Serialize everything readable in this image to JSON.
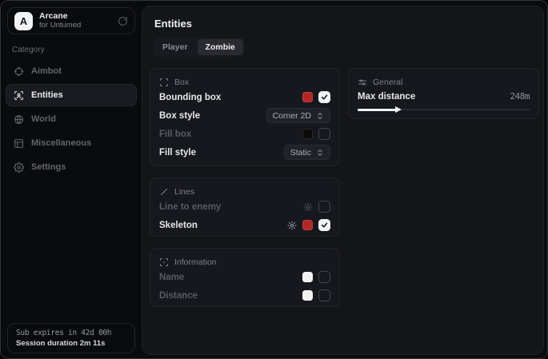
{
  "colors": {
    "accent_red": "#b32727",
    "swatch_black": "#0a0a0b",
    "swatch_white": "#f2f2f2",
    "card_bg": "#17181d",
    "main_bg": "#141519"
  },
  "sidebar": {
    "app": {
      "initial": "A",
      "name": "Arcane",
      "subtitle": "for Untumed"
    },
    "category_label": "Category",
    "items": [
      {
        "label": "Aimbot",
        "icon": "crosshair",
        "active": false
      },
      {
        "label": "Entities",
        "icon": "entity-scan",
        "active": true
      },
      {
        "label": "World",
        "icon": "globe",
        "active": false
      },
      {
        "label": "Miscellaneous",
        "icon": "grid",
        "active": false
      },
      {
        "label": "Settings",
        "icon": "gear",
        "active": false
      }
    ],
    "footer": {
      "line1": "Sub expires in 42d 00h",
      "line2": "Session duration 2m 11s"
    }
  },
  "main": {
    "title": "Entities",
    "tabs": [
      {
        "label": "Player",
        "active": false
      },
      {
        "label": "Zombie",
        "active": true
      }
    ],
    "panels": {
      "box": {
        "title": "Box",
        "rows": [
          {
            "label": "Bounding box",
            "enabled": true,
            "swatch": "#b32727",
            "checked": true
          },
          {
            "label": "Box style",
            "enabled": true,
            "dropdown": "Corner 2D"
          },
          {
            "label": "Fill box",
            "enabled": false,
            "swatch": "#0a0a0b",
            "checked": false
          },
          {
            "label": "Fill style",
            "enabled": true,
            "dropdown": "Static"
          }
        ]
      },
      "lines": {
        "title": "Lines",
        "rows": [
          {
            "label": "Line to enemy",
            "enabled": false,
            "has_gear": true,
            "checked": false
          },
          {
            "label": "Skeleton",
            "enabled": true,
            "has_gear": true,
            "swatch": "#b32727",
            "checked": true
          }
        ]
      },
      "information": {
        "title": "Information",
        "rows": [
          {
            "label": "Name",
            "enabled": false,
            "swatch": "#f2f2f2",
            "checked": false
          },
          {
            "label": "Distance",
            "enabled": false,
            "swatch": "#f2f2f2",
            "checked": false
          }
        ]
      },
      "general": {
        "title": "General",
        "slider": {
          "label": "Max distance",
          "value": "248m",
          "percent": 23
        }
      }
    }
  }
}
